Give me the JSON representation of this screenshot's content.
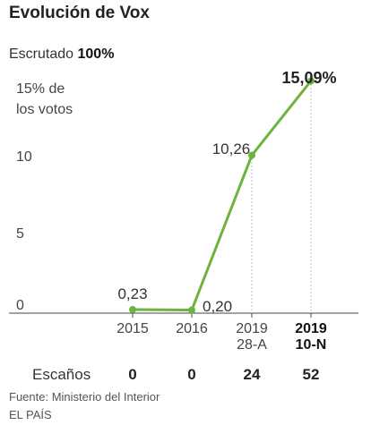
{
  "title": "Evolución de Vox",
  "count": {
    "label": "Escrutado",
    "value": "100%"
  },
  "chart_data": {
    "type": "line",
    "categories": [
      [
        "2015"
      ],
      [
        "2016"
      ],
      [
        "2019",
        "28-A"
      ],
      [
        "2019",
        "10-N"
      ]
    ],
    "highlight_index": 3,
    "series": [
      {
        "values": [
          0.23,
          0.2,
          10.26,
          15.09
        ],
        "labels": [
          "0,23",
          "0,20",
          "10,26",
          "15,09%"
        ]
      }
    ],
    "ylim": [
      0,
      15
    ],
    "yticks": [
      {
        "value": 0,
        "lines": [
          "0"
        ]
      },
      {
        "value": 5,
        "lines": [
          "5"
        ]
      },
      {
        "value": 10,
        "lines": [
          "10"
        ]
      },
      {
        "value": 15,
        "lines": [
          "15% de",
          "los votos"
        ]
      }
    ],
    "seats_label": "Escaños",
    "seats": [
      "0",
      "0",
      "24",
      "52"
    ],
    "line_color": "#6db33f",
    "grid": "dotted verticals at 2019 points"
  },
  "footer": {
    "source": "Fuente: Ministerio del Interior",
    "publisher": "EL PAÍS"
  }
}
